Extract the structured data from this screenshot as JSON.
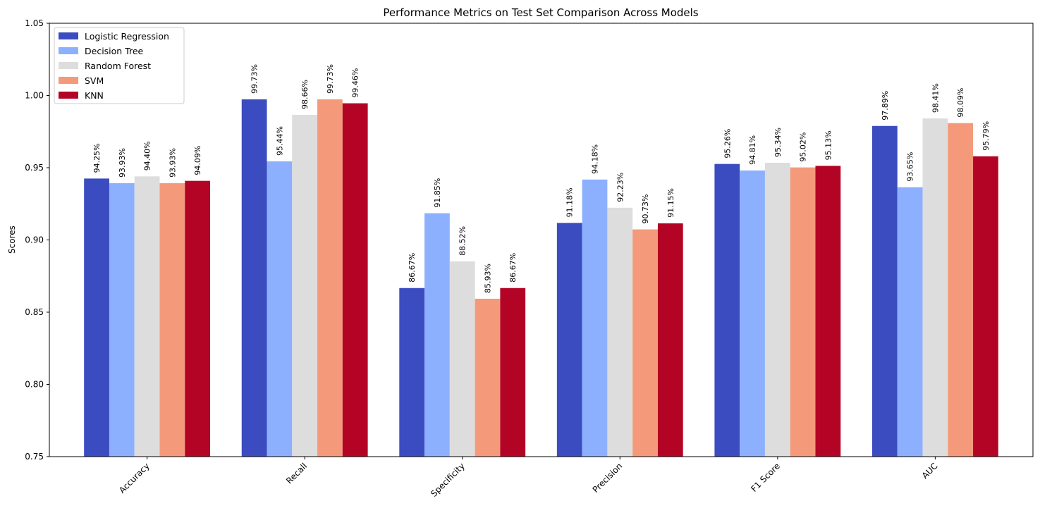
{
  "chart_data": {
    "type": "bar",
    "title": "Performance Metrics on Test Set Comparison Across Models",
    "xlabel": "",
    "ylabel": "Scores",
    "ylim": [
      0.75,
      1.05
    ],
    "yticks": [
      0.75,
      0.8,
      0.85,
      0.9,
      0.95,
      1.0,
      1.05
    ],
    "ytick_labels": [
      "0.75",
      "0.80",
      "0.85",
      "0.90",
      "0.95",
      "1.00",
      "1.05"
    ],
    "categories": [
      "Accuracy",
      "Recall",
      "Specificity",
      "Precision",
      "F1 Score",
      "AUC"
    ],
    "legend_position": "top-left",
    "grid": false,
    "series": [
      {
        "name": "Logistic Regression",
        "color": "#3b4cc0",
        "values": [
          0.9425,
          0.9973,
          0.8667,
          0.9118,
          0.9526,
          0.9789
        ],
        "labels": [
          "94.25%",
          "99.73%",
          "86.67%",
          "91.18%",
          "95.26%",
          "97.89%"
        ]
      },
      {
        "name": "Decision Tree",
        "color": "#8db0fe",
        "values": [
          0.9393,
          0.9544,
          0.9185,
          0.9418,
          0.9481,
          0.9365
        ],
        "labels": [
          "93.93%",
          "95.44%",
          "91.85%",
          "94.18%",
          "94.81%",
          "93.65%"
        ]
      },
      {
        "name": "Random Forest",
        "color": "#dddddd",
        "values": [
          0.944,
          0.9866,
          0.8852,
          0.9223,
          0.9534,
          0.9841
        ],
        "labels": [
          "94.40%",
          "98.66%",
          "88.52%",
          "92.23%",
          "95.34%",
          "98.41%"
        ]
      },
      {
        "name": "SVM",
        "color": "#f49a7b",
        "values": [
          0.9393,
          0.9973,
          0.8593,
          0.9073,
          0.9502,
          0.9809
        ],
        "labels": [
          "93.93%",
          "99.73%",
          "85.93%",
          "90.73%",
          "95.02%",
          "98.09%"
        ]
      },
      {
        "name": "KNN",
        "color": "#b40426",
        "values": [
          0.9409,
          0.9946,
          0.8667,
          0.9115,
          0.9513,
          0.9579
        ],
        "labels": [
          "94.09%",
          "99.46%",
          "86.67%",
          "91.15%",
          "95.13%",
          "95.79%"
        ]
      }
    ]
  }
}
